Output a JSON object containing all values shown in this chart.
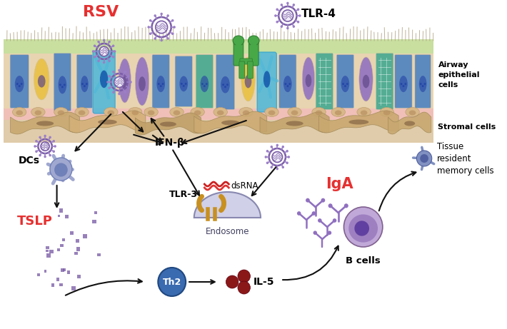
{
  "fig_width": 7.1,
  "fig_height": 4.61,
  "dpi": 100,
  "bg_color": "#ffffff",
  "rsv_label": "RSV",
  "rsv_color": "#e63030",
  "tlr4_label": "TLR-4",
  "tlr3_label": "TLR-3",
  "ifnb_label": "IFN-β",
  "tslp_label": "TSLP",
  "tslp_color": "#e63030",
  "dcs_label": "DCs",
  "iga_label": "IgA",
  "iga_color": "#e63030",
  "bcells_label": "B cells",
  "th2_label": "Th2",
  "il5_label": "IL-5",
  "dsrna_label": "dsRNA",
  "endosome_label": "Endosome",
  "tissue_label": "Tissue\nresident\nmemory cells",
  "airway_label": "Airway\nepithelial\ncells",
  "stromal_label": "Stromal cells",
  "virus_color": "#7b5ea7",
  "virus_spike_color": "#9b7fc7",
  "dc_color": "#a0a8cc",
  "tslp_dot_color": "#7b5ea7",
  "arrow_color": "#1a1a1a",
  "epithelial_green": "#c8dfa0",
  "epithelial_bg": "#e8d4b0",
  "pink_base": "#f0c0b8",
  "stromal_color": "#c8aa80",
  "cell_blue": "#4a80c0",
  "cell_yellow": "#e8c040",
  "cell_purple": "#9070c0",
  "cell_teal": "#40a890",
  "cell_lightblue": "#50b8d8",
  "cell_green": "#50a860",
  "endosome_color": "#d0d0e8",
  "th2_color": "#3a6ab0",
  "bcell_outer": "#c0a8d8",
  "bcell_mid": "#9070b8",
  "bcell_inner": "#6040a0",
  "il5_dot_color": "#8b1818",
  "tlr3_color": "#c89020",
  "tlr4_color": "#48a848",
  "dsrna_color": "#cc2020",
  "tissue_cell_color": "#7090c0",
  "iga_color2": "#9070c0"
}
